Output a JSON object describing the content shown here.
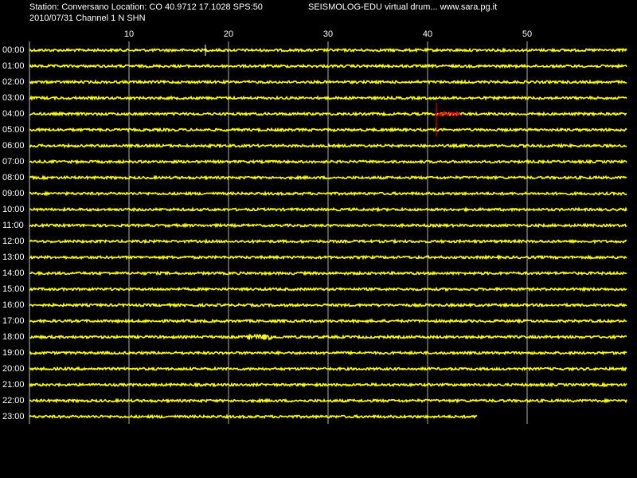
{
  "header": {
    "station": "Station: Conversano Location: CO 40.9712 17.1028 SPS:50",
    "program": "SEISMOLOG-EDU virtual drum... www.sara.pg.it",
    "channel": "2010/07/31  Channel 1 N SHN"
  },
  "axis": {
    "ticks": [
      10,
      20,
      30,
      40,
      50
    ]
  },
  "rows": [
    "00:00",
    "01:00",
    "02:00",
    "03:00",
    "04:00",
    "05:00",
    "06:00",
    "07:00",
    "08:00",
    "09:00",
    "10:00",
    "11:00",
    "12:00",
    "13:00",
    "14:00",
    "15:00",
    "16:00",
    "17:00",
    "18:00",
    "19:00",
    "20:00",
    "21:00",
    "22:00",
    "23:00"
  ]
}
